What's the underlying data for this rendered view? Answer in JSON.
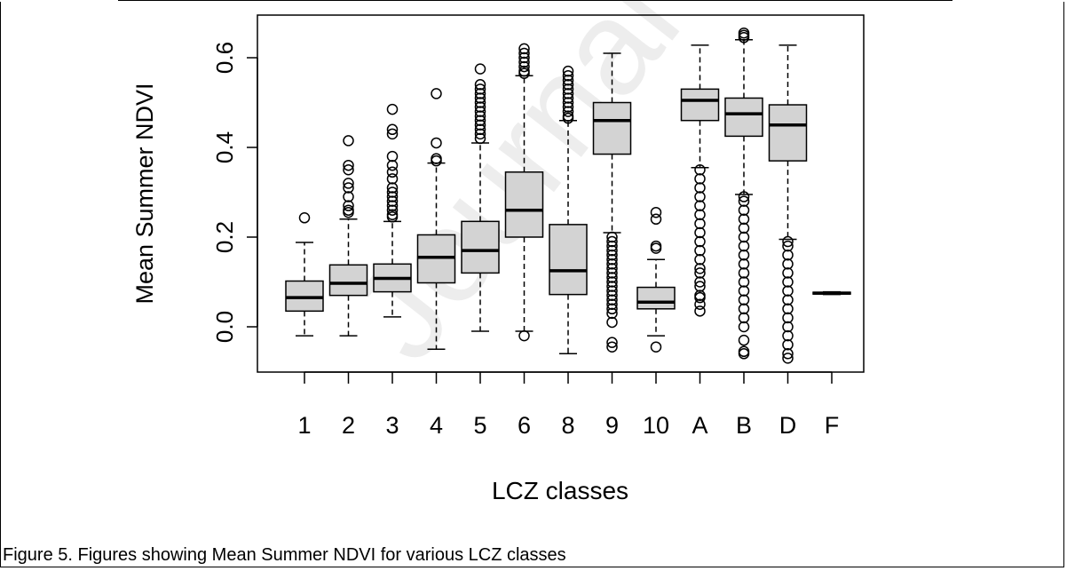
{
  "caption": "Figure 5. Figures showing Mean Summer NDVI for various LCZ classes",
  "watermark": "Journal Pre-proof",
  "colors": {
    "box_fill": "#d3d3d3",
    "stroke": "#000000",
    "background": "#ffffff"
  },
  "chart_data": {
    "type": "boxplot",
    "xlabel": "LCZ classes",
    "ylabel": "Mean Summer NDVI",
    "ylim": [
      -0.1,
      0.68
    ],
    "yticks": [
      0.0,
      0.2,
      0.4,
      0.6
    ],
    "ytick_labels": [
      "0.0",
      "0.2",
      "0.4",
      "0.6"
    ],
    "grid": false,
    "categories": [
      "1",
      "2",
      "3",
      "4",
      "5",
      "6",
      "8",
      "9",
      "10",
      "A",
      "B",
      "D",
      "F"
    ],
    "boxes": [
      {
        "label": "1",
        "whisker_low": -0.02,
        "q1": 0.035,
        "median": 0.065,
        "q3": 0.102,
        "whisker_high": 0.188,
        "outliers": [
          0.243
        ]
      },
      {
        "label": "2",
        "whisker_low": -0.02,
        "q1": 0.07,
        "median": 0.097,
        "q3": 0.138,
        "whisker_high": 0.24,
        "outliers": [
          0.255,
          0.26,
          0.27,
          0.29,
          0.31,
          0.32,
          0.35,
          0.36,
          0.415
        ]
      },
      {
        "label": "3",
        "whisker_low": 0.022,
        "q1": 0.078,
        "median": 0.108,
        "q3": 0.14,
        "whisker_high": 0.235,
        "outliers": [
          0.245,
          0.25,
          0.26,
          0.27,
          0.28,
          0.29,
          0.3,
          0.31,
          0.33,
          0.345,
          0.36,
          0.38,
          0.43,
          0.44,
          0.485
        ]
      },
      {
        "label": "4",
        "whisker_low": -0.05,
        "q1": 0.098,
        "median": 0.155,
        "q3": 0.205,
        "whisker_high": 0.365,
        "outliers": [
          0.37,
          0.375,
          0.41,
          0.52
        ]
      },
      {
        "label": "5",
        "whisker_low": -0.01,
        "q1": 0.12,
        "median": 0.17,
        "q3": 0.235,
        "whisker_high": 0.41,
        "outliers": [
          0.42,
          0.43,
          0.44,
          0.45,
          0.46,
          0.47,
          0.48,
          0.49,
          0.5,
          0.51,
          0.52,
          0.53,
          0.54,
          0.575
        ]
      },
      {
        "label": "6",
        "whisker_low": -0.01,
        "q1": 0.2,
        "median": 0.26,
        "q3": 0.345,
        "whisker_high": 0.56,
        "outliers": [
          -0.02,
          0.565,
          0.57,
          0.58,
          0.59,
          0.6,
          0.61,
          0.62
        ]
      },
      {
        "label": "8",
        "whisker_low": -0.06,
        "q1": 0.072,
        "median": 0.125,
        "q3": 0.228,
        "whisker_high": 0.46,
        "outliers": [
          0.465,
          0.47,
          0.48,
          0.49,
          0.5,
          0.51,
          0.52,
          0.53,
          0.54,
          0.55,
          0.56,
          0.57
        ]
      },
      {
        "label": "9",
        "whisker_low": 0.21,
        "q1": 0.385,
        "median": 0.46,
        "q3": 0.5,
        "whisker_high": 0.61,
        "outliers": [
          -0.045,
          -0.035,
          0.01,
          0.03,
          0.04,
          0.05,
          0.06,
          0.07,
          0.08,
          0.09,
          0.1,
          0.11,
          0.12,
          0.13,
          0.14,
          0.15,
          0.16,
          0.17,
          0.18,
          0.19,
          0.2
        ]
      },
      {
        "label": "10",
        "whisker_low": -0.02,
        "q1": 0.04,
        "median": 0.055,
        "q3": 0.088,
        "whisker_high": 0.15,
        "outliers": [
          -0.045,
          0.175,
          0.18,
          0.24,
          0.255
        ]
      },
      {
        "label": "A",
        "whisker_low": 0.355,
        "q1": 0.46,
        "median": 0.505,
        "q3": 0.53,
        "whisker_high": 0.628,
        "outliers": [
          0.035,
          0.05,
          0.065,
          0.07,
          0.09,
          0.1,
          0.12,
          0.13,
          0.15,
          0.17,
          0.19,
          0.21,
          0.23,
          0.25,
          0.27,
          0.29,
          0.31,
          0.33,
          0.35
        ]
      },
      {
        "label": "B",
        "whisker_low": 0.295,
        "q1": 0.425,
        "median": 0.475,
        "q3": 0.51,
        "whisker_high": 0.64,
        "outliers": [
          -0.06,
          -0.055,
          -0.03,
          0.0,
          0.02,
          0.04,
          0.06,
          0.08,
          0.1,
          0.12,
          0.14,
          0.16,
          0.18,
          0.2,
          0.22,
          0.24,
          0.26,
          0.28,
          0.29,
          0.645,
          0.65,
          0.655
        ]
      },
      {
        "label": "D",
        "whisker_low": 0.195,
        "q1": 0.37,
        "median": 0.45,
        "q3": 0.495,
        "whisker_high": 0.628,
        "outliers": [
          -0.07,
          -0.06,
          -0.04,
          -0.02,
          0.0,
          0.02,
          0.04,
          0.06,
          0.08,
          0.1,
          0.12,
          0.14,
          0.16,
          0.18,
          0.19
        ]
      },
      {
        "label": "F",
        "whisker_low": 0.072,
        "q1": 0.073,
        "median": 0.075,
        "q3": 0.077,
        "whisker_high": 0.078,
        "outliers": []
      }
    ]
  }
}
